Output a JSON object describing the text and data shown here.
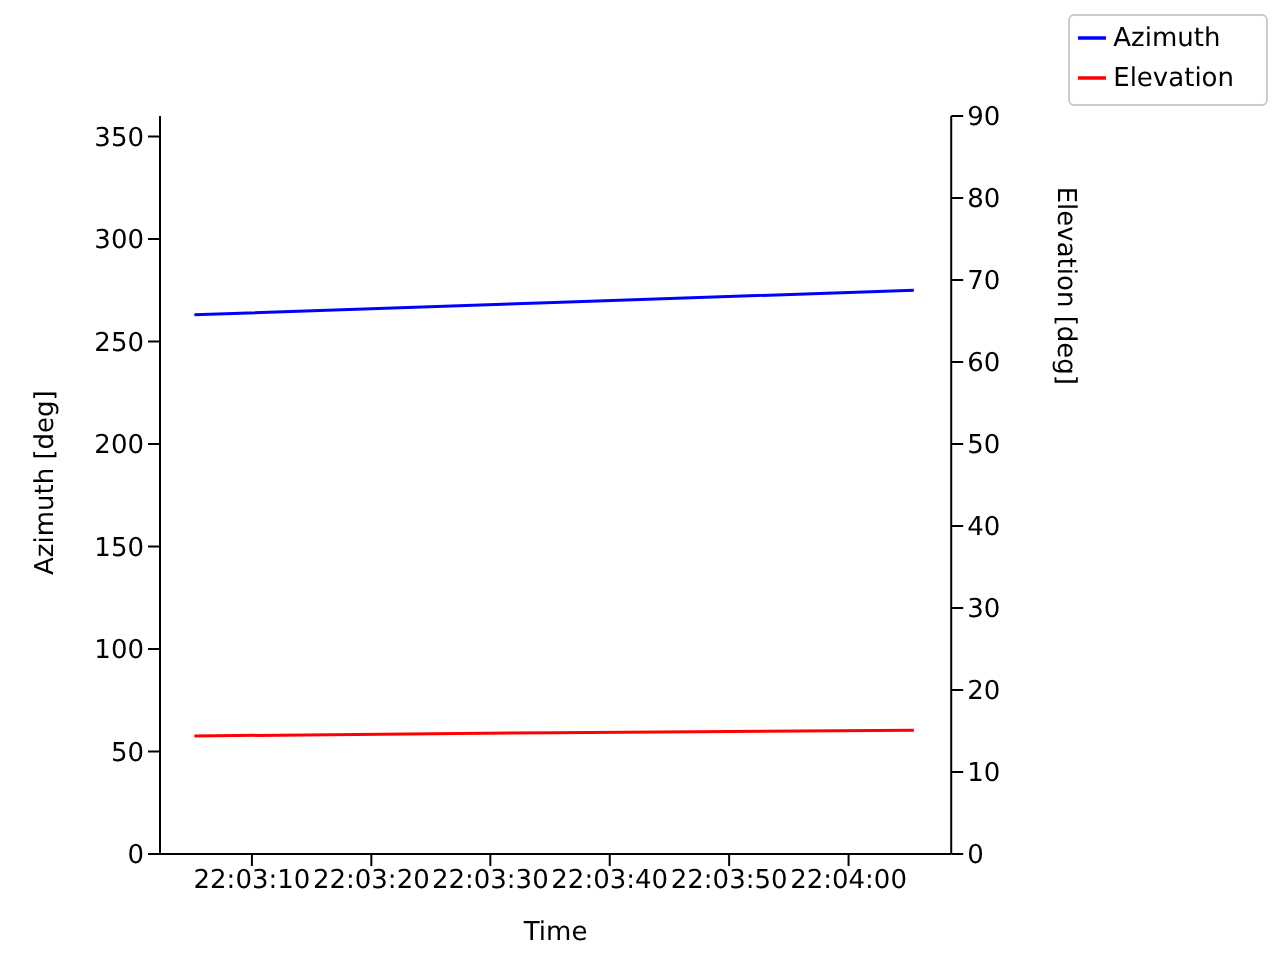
{
  "chart_data": {
    "type": "line",
    "xlabel": "Time",
    "ylabel": "Azimuth [deg]",
    "y2label": "Elevation [deg]",
    "x": [
      22.05144,
      22.05981,
      22.06819
    ],
    "series": [
      {
        "name": "Azimuth",
        "color": "#0000ff",
        "values": [
          263,
          269,
          275
        ]
      },
      {
        "name": "Elevation",
        "color": "#ff0000",
        "axis": "y2",
        "values": [
          14.4,
          14.8,
          15.1
        ]
      }
    ],
    "xlim": [
      22.05064,
      22.06906
    ],
    "xticks": [
      {
        "value": 22.05278,
        "label": "22:03:10"
      },
      {
        "value": 22.05556,
        "label": "22:03:20"
      },
      {
        "value": 22.05833,
        "label": "22:03:30"
      },
      {
        "value": 22.06111,
        "label": "22:03:40"
      },
      {
        "value": 22.06389,
        "label": "22:03:50"
      },
      {
        "value": 22.06667,
        "label": "22:04:00"
      }
    ],
    "ylim": [
      0,
      360
    ],
    "yticks": [
      0,
      50,
      100,
      150,
      200,
      250,
      300,
      350
    ],
    "y2lim": [
      0,
      90
    ],
    "y2ticks": [
      0,
      10,
      20,
      30,
      40,
      50,
      60,
      70,
      80,
      90
    ],
    "grid": false,
    "legend": "top right",
    "marker": "none",
    "line_style": "solid"
  }
}
